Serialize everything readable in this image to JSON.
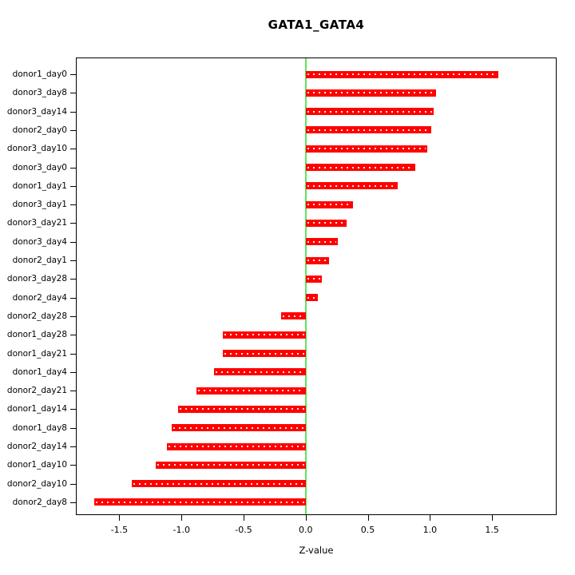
{
  "title": "GATA1_GATA4",
  "chart_data": {
    "type": "bar",
    "orientation": "horizontal",
    "title": "GATA1_GATA4",
    "xlabel": "Z-value",
    "ylabel": "",
    "xlim": [
      -1.85,
      2.02
    ],
    "xticks": [
      -1.5,
      -1.0,
      -0.5,
      0.0,
      0.5,
      1.0,
      1.5
    ],
    "grid": false,
    "legend": false,
    "bar_color": "#ff0000",
    "zero_line_color": "#5ce65c",
    "axis_color": "#000000",
    "categories": [
      "donor1_day0",
      "donor3_day8",
      "donor3_day14",
      "donor2_day0",
      "donor3_day10",
      "donor3_day0",
      "donor1_day1",
      "donor3_day1",
      "donor3_day21",
      "donor3_day4",
      "donor2_day1",
      "donor3_day28",
      "donor2_day4",
      "donor2_day28",
      "donor1_day28",
      "donor1_day21",
      "donor1_day4",
      "donor2_day21",
      "donor1_day14",
      "donor1_day8",
      "donor2_day14",
      "donor1_day10",
      "donor2_day10",
      "donor2_day8"
    ],
    "values": [
      1.55,
      1.05,
      1.03,
      1.01,
      0.98,
      0.88,
      0.74,
      0.38,
      0.33,
      0.26,
      0.19,
      0.13,
      0.1,
      -0.2,
      -0.67,
      -0.67,
      -0.74,
      -0.88,
      -1.03,
      -1.08,
      -1.12,
      -1.21,
      -1.4,
      -1.7
    ]
  }
}
